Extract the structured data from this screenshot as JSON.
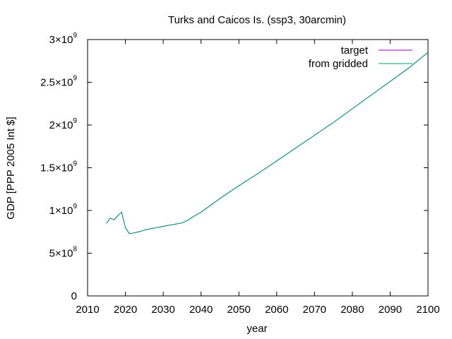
{
  "chart_data": {
    "type": "line",
    "title": "Turks and Caicos Is. (ssp3, 30arcmin)",
    "xlabel": "year",
    "ylabel": "GDP [PPP 2005 Int $]",
    "xlim": [
      2010,
      2100
    ],
    "ylim": [
      0,
      3000000000
    ],
    "grid": false,
    "legend_position": "top-right",
    "x_ticks": [
      2010,
      2020,
      2030,
      2040,
      2050,
      2060,
      2070,
      2080,
      2090,
      2100
    ],
    "y_ticks": [
      {
        "value": 0,
        "mantissa": "0",
        "exponent": ""
      },
      {
        "value": 500000000,
        "mantissa": "5×10",
        "exponent": "8"
      },
      {
        "value": 1000000000,
        "mantissa": "1×10",
        "exponent": "9"
      },
      {
        "value": 1500000000,
        "mantissa": "1.5×10",
        "exponent": "9"
      },
      {
        "value": 2000000000,
        "mantissa": "2×10",
        "exponent": "9"
      },
      {
        "value": 2500000000,
        "mantissa": "2.5×10",
        "exponent": "9"
      },
      {
        "value": 3000000000,
        "mantissa": "3×10",
        "exponent": "9"
      }
    ],
    "series": [
      {
        "name": "target",
        "color": "#9400d3",
        "x": [
          2015,
          2016,
          2017,
          2018,
          2019,
          2020,
          2021,
          2022,
          2023,
          2024,
          2025,
          2026,
          2027,
          2028,
          2029,
          2030,
          2031,
          2032,
          2033,
          2034,
          2035,
          2036,
          2037,
          2038,
          2039,
          2040,
          2045,
          2050,
          2055,
          2060,
          2065,
          2070,
          2075,
          2080,
          2085,
          2090,
          2095,
          2100
        ],
        "y": [
          850000000,
          910000000,
          890000000,
          940000000,
          980000000,
          800000000,
          730000000,
          735000000,
          745000000,
          755000000,
          770000000,
          780000000,
          790000000,
          798000000,
          806000000,
          814000000,
          822000000,
          830000000,
          838000000,
          846000000,
          855000000,
          875000000,
          900000000,
          930000000,
          955000000,
          980000000,
          1140000000,
          1290000000,
          1430000000,
          1580000000,
          1730000000,
          1880000000,
          2030000000,
          2190000000,
          2350000000,
          2510000000,
          2670000000,
          2850000000
        ]
      },
      {
        "name": "from gridded",
        "color": "#009e73",
        "x": [
          2015,
          2016,
          2017,
          2018,
          2019,
          2020,
          2021,
          2022,
          2023,
          2024,
          2025,
          2026,
          2027,
          2028,
          2029,
          2030,
          2031,
          2032,
          2033,
          2034,
          2035,
          2036,
          2037,
          2038,
          2039,
          2040,
          2045,
          2050,
          2055,
          2060,
          2065,
          2070,
          2075,
          2080,
          2085,
          2090,
          2095,
          2100
        ],
        "y": [
          850000000,
          910000000,
          890000000,
          940000000,
          980000000,
          800000000,
          730000000,
          735000000,
          745000000,
          755000000,
          770000000,
          780000000,
          790000000,
          798000000,
          806000000,
          814000000,
          822000000,
          830000000,
          838000000,
          846000000,
          855000000,
          875000000,
          900000000,
          930000000,
          955000000,
          980000000,
          1140000000,
          1290000000,
          1430000000,
          1580000000,
          1730000000,
          1880000000,
          2030000000,
          2190000000,
          2350000000,
          2510000000,
          2670000000,
          2850000000
        ]
      }
    ]
  }
}
